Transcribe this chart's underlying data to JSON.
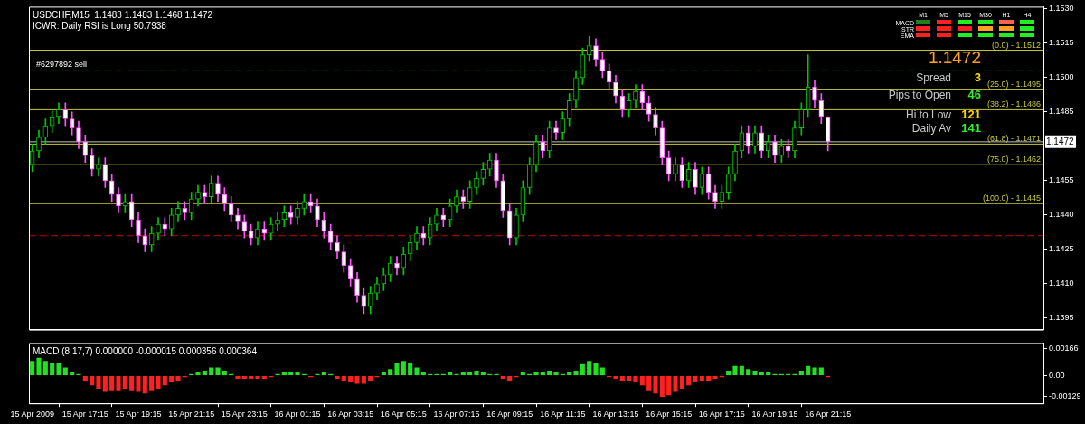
{
  "chart_data": [
    {
      "type": "candlestick",
      "title": "USDCHF,M15  1.1483 1.1483 1.1468 1.1472",
      "subtitle": "ICWR: Daily RSI is Long 50.7938",
      "categories": [
        null,
        null,
        null,
        null,
        null,
        null,
        null,
        null,
        null,
        null,
        null,
        null,
        null,
        null,
        null,
        null,
        null,
        null,
        null,
        null,
        null,
        null,
        null,
        null,
        null,
        null,
        null,
        null,
        null,
        null,
        null,
        null,
        null,
        null,
        null,
        null,
        null,
        null,
        null,
        null,
        null,
        null,
        null,
        null,
        null,
        null,
        null,
        null,
        null,
        null,
        null,
        null,
        null,
        null,
        null,
        null,
        null,
        null,
        null,
        null,
        null,
        null,
        null,
        null,
        null,
        null,
        null,
        null,
        null,
        null,
        null,
        null,
        null,
        null,
        null,
        null,
        null,
        null,
        null,
        null,
        null,
        null,
        null,
        null,
        null,
        null,
        null,
        null,
        null,
        null,
        null,
        null,
        null,
        null,
        null,
        null,
        null,
        null,
        null,
        null,
        null,
        null,
        null,
        null,
        null,
        null,
        null,
        null,
        null,
        null,
        null,
        null,
        null,
        null,
        null,
        null,
        null,
        null,
        null,
        null,
        null,
        null,
        null,
        null,
        null,
        null,
        null,
        null,
        null,
        null,
        null,
        null,
        null,
        null,
        null,
        null,
        null,
        null,
        null,
        null,
        null,
        null,
        null,
        null,
        null,
        null,
        null,
        null,
        null,
        null,
        null,
        null,
        null
      ],
      "ohlc": [
        [
          1.1462,
          1.1471,
          1.1459,
          1.1468
        ],
        [
          1.1468,
          1.1477,
          1.1465,
          1.1474
        ],
        [
          1.1474,
          1.1482,
          1.1471,
          1.1479
        ],
        [
          1.1479,
          1.1486,
          1.1476,
          1.1483
        ],
        [
          1.1483,
          1.1489,
          1.148,
          1.1486
        ],
        [
          1.1486,
          1.1489,
          1.1479,
          1.1482
        ],
        [
          1.1482,
          1.1485,
          1.1475,
          1.1478
        ],
        [
          1.1478,
          1.1481,
          1.1469,
          1.1472
        ],
        [
          1.1472,
          1.1475,
          1.1463,
          1.1466
        ],
        [
          1.1466,
          1.1469,
          1.1457,
          1.146
        ],
        [
          1.146,
          1.1465,
          1.1457,
          1.1462
        ],
        [
          1.1462,
          1.1465,
          1.1452,
          1.1455
        ],
        [
          1.1455,
          1.1458,
          1.1446,
          1.1449
        ],
        [
          1.1449,
          1.1452,
          1.1441,
          1.1444
        ],
        [
          1.1444,
          1.1449,
          1.1441,
          1.1446
        ],
        [
          1.1446,
          1.1449,
          1.1435,
          1.1438
        ],
        [
          1.1438,
          1.1441,
          1.1428,
          1.1431
        ],
        [
          1.1431,
          1.1434,
          1.1424,
          1.1427
        ],
        [
          1.1427,
          1.1435,
          1.1424,
          1.1432
        ],
        [
          1.1432,
          1.1439,
          1.1429,
          1.1436
        ],
        [
          1.1436,
          1.1439,
          1.1431,
          1.1434
        ],
        [
          1.1434,
          1.1443,
          1.1431,
          1.144
        ],
        [
          1.144,
          1.1446,
          1.1437,
          1.1443
        ],
        [
          1.1443,
          1.1446,
          1.1438,
          1.1441
        ],
        [
          1.1441,
          1.145,
          1.1438,
          1.1447
        ],
        [
          1.1447,
          1.1453,
          1.1444,
          1.145
        ],
        [
          1.145,
          1.1453,
          1.1445,
          1.1448
        ],
        [
          1.1448,
          1.1457,
          1.1445,
          1.1454
        ],
        [
          1.1454,
          1.1457,
          1.1446,
          1.1449
        ],
        [
          1.1449,
          1.1452,
          1.1442,
          1.1445
        ],
        [
          1.1445,
          1.1448,
          1.1437,
          1.144
        ],
        [
          1.144,
          1.1443,
          1.1434,
          1.1437
        ],
        [
          1.1437,
          1.144,
          1.143,
          1.1433
        ],
        [
          1.1433,
          1.1436,
          1.1427,
          1.143
        ],
        [
          1.143,
          1.1437,
          1.1427,
          1.1434
        ],
        [
          1.1434,
          1.1437,
          1.1429,
          1.1432
        ],
        [
          1.1432,
          1.1439,
          1.1429,
          1.1436
        ],
        [
          1.1436,
          1.1441,
          1.1433,
          1.1438
        ],
        [
          1.1438,
          1.1444,
          1.1435,
          1.1441
        ],
        [
          1.1441,
          1.1444,
          1.1436,
          1.1439
        ],
        [
          1.1439,
          1.1446,
          1.1436,
          1.1443
        ],
        [
          1.1443,
          1.1449,
          1.144,
          1.1446
        ],
        [
          1.1446,
          1.1449,
          1.1441,
          1.1444
        ],
        [
          1.1444,
          1.1447,
          1.1435,
          1.1438
        ],
        [
          1.1438,
          1.1441,
          1.143,
          1.1433
        ],
        [
          1.1433,
          1.1436,
          1.1425,
          1.1428
        ],
        [
          1.1428,
          1.1431,
          1.1421,
          1.1424
        ],
        [
          1.1424,
          1.1427,
          1.1415,
          1.1418
        ],
        [
          1.1418,
          1.1421,
          1.1409,
          1.1412
        ],
        [
          1.1412,
          1.1415,
          1.1402,
          1.1405
        ],
        [
          1.1405,
          1.1408,
          1.1397,
          1.14
        ],
        [
          1.14,
          1.1409,
          1.1397,
          1.1406
        ],
        [
          1.1406,
          1.1413,
          1.1403,
          1.141
        ],
        [
          1.141,
          1.1417,
          1.1407,
          1.1414
        ],
        [
          1.1414,
          1.1422,
          1.1411,
          1.1419
        ],
        [
          1.1419,
          1.1422,
          1.1414,
          1.1417
        ],
        [
          1.1417,
          1.1426,
          1.1414,
          1.1423
        ],
        [
          1.1423,
          1.1431,
          1.142,
          1.1428
        ],
        [
          1.1428,
          1.1435,
          1.1425,
          1.1432
        ],
        [
          1.1432,
          1.1435,
          1.1427,
          1.143
        ],
        [
          1.143,
          1.1439,
          1.1427,
          1.1436
        ],
        [
          1.1436,
          1.1443,
          1.1433,
          1.144
        ],
        [
          1.144,
          1.1443,
          1.1435,
          1.1438
        ],
        [
          1.1438,
          1.1447,
          1.1435,
          1.1444
        ],
        [
          1.1444,
          1.1451,
          1.1441,
          1.1448
        ],
        [
          1.1448,
          1.1451,
          1.1443,
          1.1446
        ],
        [
          1.1446,
          1.1455,
          1.1443,
          1.1452
        ],
        [
          1.1452,
          1.1459,
          1.1449,
          1.1456
        ],
        [
          1.1456,
          1.1463,
          1.1453,
          1.146
        ],
        [
          1.146,
          1.1467,
          1.1457,
          1.1464
        ],
        [
          1.1464,
          1.1467,
          1.1452,
          1.1455
        ],
        [
          1.1455,
          1.1458,
          1.1439,
          1.1442
        ],
        [
          1.1442,
          1.1445,
          1.1427,
          1.143
        ],
        [
          1.143,
          1.1443,
          1.1427,
          1.144
        ],
        [
          1.144,
          1.1455,
          1.1437,
          1.1452
        ],
        [
          1.1452,
          1.1465,
          1.1449,
          1.1462
        ],
        [
          1.1462,
          1.1475,
          1.1459,
          1.1472
        ],
        [
          1.1472,
          1.1475,
          1.1465,
          1.1468
        ],
        [
          1.1468,
          1.1481,
          1.1465,
          1.1478
        ],
        [
          1.1478,
          1.1481,
          1.1473,
          1.1476
        ],
        [
          1.1476,
          1.1485,
          1.1473,
          1.1482
        ],
        [
          1.1482,
          1.1493,
          1.1479,
          1.149
        ],
        [
          1.149,
          1.1503,
          1.1487,
          1.15
        ],
        [
          1.15,
          1.1513,
          1.1497,
          1.151
        ],
        [
          1.151,
          1.1518,
          1.1507,
          1.1514
        ],
        [
          1.1514,
          1.1517,
          1.1505,
          1.1508
        ],
        [
          1.1508,
          1.1511,
          1.15,
          1.1503
        ],
        [
          1.1503,
          1.1506,
          1.1495,
          1.1498
        ],
        [
          1.1498,
          1.1501,
          1.1489,
          1.1492
        ],
        [
          1.1492,
          1.1495,
          1.1483,
          1.1486
        ],
        [
          1.1486,
          1.1493,
          1.1483,
          1.149
        ],
        [
          1.149,
          1.1497,
          1.1487,
          1.1494
        ],
        [
          1.1494,
          1.1497,
          1.1486,
          1.1489
        ],
        [
          1.1489,
          1.1492,
          1.1481,
          1.1484
        ],
        [
          1.1484,
          1.1487,
          1.1475,
          1.1478
        ],
        [
          1.1478,
          1.1481,
          1.1462,
          1.1465
        ],
        [
          1.1465,
          1.1468,
          1.1455,
          1.1458
        ],
        [
          1.1458,
          1.1465,
          1.1455,
          1.1462
        ],
        [
          1.1462,
          1.1465,
          1.1452,
          1.1455
        ],
        [
          1.1455,
          1.1463,
          1.1452,
          1.146
        ],
        [
          1.146,
          1.1463,
          1.1449,
          1.1452
        ],
        [
          1.1452,
          1.1461,
          1.1449,
          1.1458
        ],
        [
          1.1458,
          1.1461,
          1.1447,
          1.145
        ],
        [
          1.145,
          1.1453,
          1.1443,
          1.1446
        ],
        [
          1.1446,
          1.1453,
          1.1443,
          1.145
        ],
        [
          1.145,
          1.1461,
          1.1447,
          1.1458
        ],
        [
          1.1458,
          1.1471,
          1.1455,
          1.1468
        ],
        [
          1.1468,
          1.1479,
          1.1465,
          1.1476
        ],
        [
          1.1476,
          1.1479,
          1.1467,
          1.147
        ],
        [
          1.147,
          1.1479,
          1.1467,
          1.1476
        ],
        [
          1.1476,
          1.1479,
          1.1465,
          1.1468
        ],
        [
          1.1468,
          1.1475,
          1.1465,
          1.1472
        ],
        [
          1.1472,
          1.1475,
          1.1463,
          1.1466
        ],
        [
          1.1466,
          1.1473,
          1.1463,
          1.147
        ],
        [
          1.147,
          1.1473,
          1.1465,
          1.1468
        ],
        [
          1.1468,
          1.1481,
          1.1465,
          1.1478
        ],
        [
          1.1478,
          1.1489,
          1.1475,
          1.1486
        ],
        [
          1.1486,
          1.151,
          1.1483,
          1.1496
        ],
        [
          1.1496,
          1.1499,
          1.1487,
          1.149
        ],
        [
          1.149,
          1.1493,
          1.148,
          1.1483
        ],
        [
          1.1483,
          1.1483,
          1.1468,
          1.1472
        ],
        null,
        null,
        null,
        null,
        null,
        null,
        null,
        null,
        null,
        null,
        null,
        null,
        null,
        null,
        null,
        null,
        null,
        null,
        null,
        null,
        null,
        null,
        null,
        null,
        null,
        null,
        null,
        null,
        null,
        null,
        null,
        null
      ],
      "ylim": [
        1.139,
        1.1531
      ],
      "yticks": [
        {
          "value": 1.1395,
          "label": "1.1395"
        },
        {
          "value": 1.141,
          "label": "1.1410"
        },
        {
          "value": 1.1425,
          "label": "1.1425"
        },
        {
          "value": 1.144,
          "label": "1.1440"
        },
        {
          "value": 1.1455,
          "label": "1.1455"
        },
        {
          "value": 1.147,
          "label": null
        },
        {
          "value": 1.1485,
          "label": "1.1485"
        },
        {
          "value": 1.15,
          "label": "1.1500"
        },
        {
          "value": 1.1515,
          "label": "1.1515"
        },
        {
          "value": 1.153,
          "label": "1.1530"
        }
      ],
      "ref_lines": [
        {
          "axis": "y",
          "value": 1.1503,
          "label": "#6297892 sell",
          "color": "#008000",
          "line_style": "dashed"
        },
        {
          "axis": "y",
          "value": 1.1472,
          "label": "1.1472",
          "color": "#c0c0c0"
        },
        {
          "axis": "y",
          "value": 1.1431,
          "color": "#c00000",
          "line_style": "dashed"
        },
        {
          "axis": "y",
          "value": 1.1512,
          "color": "#c8c832"
        },
        {
          "axis": "y",
          "value": 1.1495,
          "color": "#c8c832"
        },
        {
          "axis": "y",
          "value": 1.1486,
          "color": "#c8c832"
        },
        {
          "axis": "y",
          "value": 1.1471,
          "color": "#c8c832"
        },
        {
          "axis": "y",
          "value": 1.1462,
          "color": "#c8c832"
        },
        {
          "axis": "y",
          "value": 1.1445,
          "color": "#c8c832"
        }
      ],
      "annotations": [
        "1.1472",
        "Spread",
        "3",
        "Pips to Open",
        "46",
        "Hi to Low",
        "121",
        "Daily Av",
        "141",
        "M1",
        "M5",
        "M15",
        "M30",
        "H1",
        "H4",
        "MACD",
        "STR",
        "EMA",
        {
          "text": "(0.0) - 1.1512",
          "y": 1.1512
        },
        {
          "text": "(25.0) - 1.1495",
          "y": 1.1495
        },
        {
          "text": "(38.2) - 1.1486",
          "y": 1.1486
        },
        {
          "text": "(61.8) - 1.1471",
          "y": 1.1471
        },
        {
          "text": "(75.0) - 1.1462",
          "y": 1.1462
        },
        {
          "text": "(100.0) - 1.1445",
          "y": 1.1445
        }
      ]
    },
    {
      "type": "bar",
      "title": "MACD (8,17,7) 0.000000 -0.000015 0.000356 0.000364",
      "categories": [
        "15 Apr 2009",
        null,
        null,
        null,
        null,
        null,
        null,
        null,
        "15 Apr 17:15",
        null,
        null,
        null,
        null,
        null,
        null,
        null,
        "15 Apr 19:15",
        null,
        null,
        null,
        null,
        null,
        null,
        null,
        "15 Apr 21:15",
        null,
        null,
        null,
        null,
        null,
        null,
        null,
        "15 Apr 23:15",
        null,
        null,
        null,
        null,
        null,
        null,
        null,
        "16 Apr 01:15",
        null,
        null,
        null,
        null,
        null,
        null,
        null,
        "16 Apr 03:15",
        null,
        null,
        null,
        null,
        null,
        null,
        null,
        "16 Apr 05:15",
        null,
        null,
        null,
        null,
        null,
        null,
        null,
        "16 Apr 07:15",
        null,
        null,
        null,
        null,
        null,
        null,
        null,
        "16 Apr 09:15",
        null,
        null,
        null,
        null,
        null,
        null,
        null,
        "16 Apr 11:15",
        null,
        null,
        null,
        null,
        null,
        null,
        null,
        "16 Apr 13:15",
        null,
        null,
        null,
        null,
        null,
        null,
        null,
        "16 Apr 15:15",
        null,
        null,
        null,
        null,
        null,
        null,
        null,
        "16 Apr 17:15",
        null,
        null,
        null,
        null,
        null,
        null,
        null,
        "16 Apr 19:15",
        null,
        null,
        null,
        null,
        null,
        null,
        null,
        "16 Apr 21:15",
        null,
        null,
        null,
        null,
        null,
        null,
        null,
        null,
        null,
        null,
        null,
        null,
        null,
        null,
        null,
        null,
        null,
        null,
        null,
        null,
        null,
        null,
        null,
        null,
        null,
        null,
        null,
        null,
        null,
        null,
        null,
        null
      ],
      "stacked": true,
      "series": [
        {
          "color": "#22e022",
          "values": [
            0.0009,
            0.0011,
            0.0009,
            0.0008,
            0.0008,
            0.0005,
            0.0002,
            0.0001,
            null,
            null,
            null,
            null,
            null,
            null,
            null,
            null,
            null,
            null,
            null,
            null,
            null,
            null,
            null,
            null,
            0.0001,
            0.0002,
            0.0003,
            0.0005,
            0.0005,
            0.0003,
            0.0001,
            null,
            null,
            null,
            null,
            null,
            null,
            0.0001,
            0.0002,
            0.0002,
            0.0002,
            0.0001,
            null,
            0.0001,
            0.0002,
            0.0001,
            null,
            null,
            null,
            null,
            null,
            null,
            null,
            0.0002,
            0.0004,
            0.0008,
            0.0009,
            0.0008,
            0.0005,
            0.0002,
            0.0001,
            0.0001,
            0.0001,
            0.0002,
            0.0001,
            0.0002,
            0.0002,
            0.0003,
            0.0002,
            0.0001,
            0.0001,
            null,
            null,
            null,
            0.0002,
            0.0001,
            0.0002,
            0.0002,
            0.0003,
            0.0002,
            0.0001,
            0.0002,
            0.0003,
            0.0007,
            0.0009,
            0.0008,
            0.0005,
            null,
            null,
            null,
            null,
            null,
            null,
            null,
            null,
            null,
            null,
            null,
            null,
            null,
            null,
            null,
            null,
            null,
            null,
            0.0003,
            0.0006,
            0.0006,
            0.0004,
            0.0003,
            0.0002,
            0.0002,
            0.0001,
            0.0001,
            0.0001,
            0.0001,
            0.0003,
            0.0006,
            0.0005,
            0.0005,
            null,
            null,
            null,
            null,
            null,
            null,
            null,
            null,
            null,
            null,
            null,
            null,
            null,
            null,
            null,
            null,
            null,
            null,
            null,
            null,
            null,
            null,
            null,
            null,
            null,
            null,
            null,
            null,
            null,
            null,
            null,
            null,
            null
          ]
        },
        {
          "color": "#ff2020",
          "values": [
            null,
            null,
            null,
            null,
            null,
            null,
            null,
            null,
            -0.0003,
            -0.0006,
            -0.0008,
            -0.001,
            -0.0009,
            -0.0009,
            -0.0008,
            -0.0009,
            -0.001,
            -0.0011,
            -0.0009,
            -0.0008,
            -0.0006,
            -0.0004,
            -0.0003,
            -0.0001,
            null,
            null,
            null,
            null,
            null,
            null,
            null,
            -0.0002,
            -0.0002,
            -0.0002,
            -0.0002,
            -0.0002,
            -0.0001,
            null,
            null,
            null,
            null,
            null,
            -0.0001,
            null,
            null,
            null,
            -0.0002,
            -0.0003,
            -0.0004,
            -0.0005,
            -0.0005,
            -0.0003,
            -0.0001,
            null,
            null,
            null,
            null,
            null,
            null,
            null,
            null,
            null,
            null,
            null,
            null,
            null,
            null,
            null,
            null,
            null,
            null,
            -0.0002,
            -0.0003,
            -0.0001,
            null,
            null,
            null,
            null,
            null,
            null,
            null,
            null,
            null,
            null,
            null,
            null,
            null,
            -0.0001,
            -0.0002,
            -0.0003,
            -0.0003,
            -0.0004,
            -0.0006,
            -0.0009,
            -0.0011,
            -0.0013,
            -0.0012,
            -0.001,
            -0.0008,
            -0.0006,
            -0.0004,
            -0.0003,
            -0.0003,
            -0.0002,
            -0.0001,
            null,
            null,
            null,
            null,
            null,
            null,
            null,
            null,
            null,
            null,
            null,
            null,
            null,
            null,
            null,
            -0.0001,
            null,
            null,
            null,
            null,
            null,
            null,
            null,
            null,
            null,
            null,
            null,
            null,
            null,
            null,
            null,
            null,
            null,
            null,
            null,
            null,
            null,
            null,
            null,
            null,
            null,
            null,
            null,
            null,
            null,
            null,
            null,
            null
          ]
        }
      ],
      "ylim": [
        -0.0017,
        0.002
      ],
      "yticks": [
        {
          "value": -0.00129,
          "label": "-0.00129"
        },
        {
          "value": 0,
          "label": "0.00"
        },
        {
          "value": 0.00166,
          "label": "0.00166"
        }
      ]
    }
  ]
}
